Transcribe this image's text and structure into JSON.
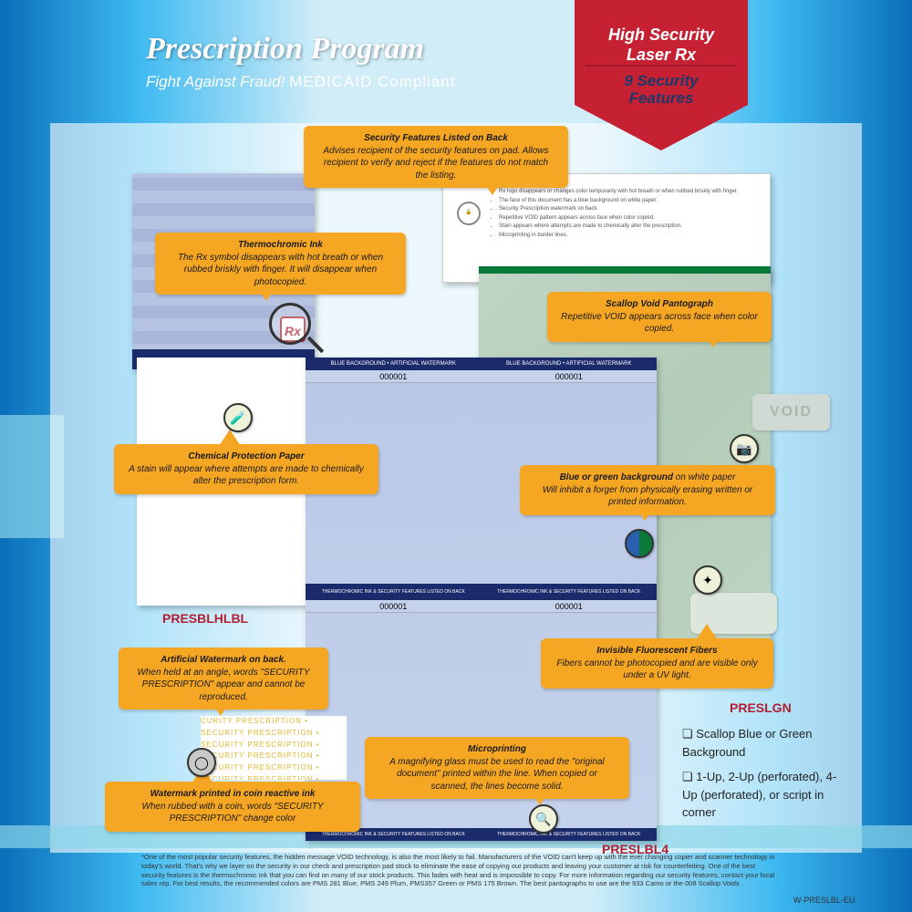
{
  "colors": {
    "accent_orange": "#f5a623",
    "ribbon_red": "#c62033",
    "deep_navy": "#1b2a6b",
    "product_red": "#b02030"
  },
  "header": {
    "title": "Prescription Program",
    "subtitle_em": "Fight Against Fraud!",
    "subtitle_plain": "MEDICAID Compliant"
  },
  "ribbon": {
    "line1": "High Security\nLaser Rx",
    "line2": "9 Security\nFeatures"
  },
  "callouts": {
    "sec_back": {
      "title": "Security Features Listed on Back",
      "body": "Advises recipient of the security features on pad. Allows recipient to verify and reject if the features do not match the listing."
    },
    "thermo": {
      "title": "Thermochromic Ink",
      "body": "The Rx symbol disappears with hot breath or when rubbed briskly with finger. It will disappear when photocopied."
    },
    "scallop": {
      "title": "Scallop Void Pantograph",
      "body": "Repetitive VOID appears across face when color copied."
    },
    "chem": {
      "title": "Chemical Protection Paper",
      "body": "A stain will appear where attempts are made to chemically alter the prescription form."
    },
    "bluebg": {
      "title": "Blue or green background",
      "title_tail": " on white paper",
      "body": "Will inhibit a forger from physically erasing written or printed information."
    },
    "fibers": {
      "title": "Invisible Fluorescent Fibers",
      "body": "Fibers cannot be photocopied and are visible only under a UV light."
    },
    "artwm": {
      "title": "Artificial Watermark on back.",
      "body": "When held at an angle, words \"SECURITY PRESCRIPTION\" appear and cannot be reproduced."
    },
    "coin": {
      "title": "Watermark printed in coin reactive ink",
      "body": "When rubbed with a coin, words \"SECURITY PRESCRIPTION\" change color"
    },
    "micro": {
      "title": "Microprinting",
      "body": "A magnifying glass must be used to read the \"original document\" printed within the line. When copied or scanned, the lines become solid."
    }
  },
  "doc_back_bullets": [
    "Rx logo disappears or changes color temporarily with hot breath or when rubbed briskly with finger.",
    "The face of this document has a blue background on white paper.",
    "Security Prescription watermark on back.",
    "Repetitive VOID pattern appears across face when color copied.",
    "Stain appears where attempts are made to chemically alter the prescription.",
    "Microprinting in border lines."
  ],
  "main_doc": {
    "header_left": "BLUE BACKGROUND • ARTIFICIAL WATERMARK",
    "header_right": "BLUE BACKGROUND • ARTIFICIAL WATERMARK",
    "number": "000001",
    "midbar": "THERMOCHROMIC INK & SECURITY FEATURES LISTED ON BACK"
  },
  "products": {
    "p1": "PRESBLHLBL",
    "p2": "PRESLGN",
    "p3": "PRESLBL4"
  },
  "options": {
    "opt1": "Scallop Blue or Green Background",
    "opt2": "1-Up, 2-Up (perforated), 4-Up (perforated), or script in corner"
  },
  "void_sample": "VOID",
  "yellow_wm_text": "CURITY PRESCRIPTION • SECURITY PRESCRIPTION • SECURITY PRESCRIPTION • SECURITY PRESCRIPTION • SECURITY PRESCRIPTION • SECURITY PRESCRIPTION •",
  "rx": "Rx",
  "footnote": "*One of the most popular security features, the hidden message VOID technology, is also the most likely to fail. Manufacturers of the VOID can't keep up with the ever changing copier and scanner technology in today's world. That's why we layer on the security in our check and prescription pad stock to eliminate the ease of copying our products and leaving your customer at risk for counterfeiting. One of the best security features is the thermochromic ink that you can find on many of our stock products. This fades with heat and is impossible to copy. For more information regarding our security features, contact your local sales rep. For best results, the recommended colors are PMS 281 Blue, PMS 249 Plum, PMS357 Green or PMS 175 Brown. The best pantographs to use are the 933 Camo or the 008 Scallop Voids",
  "doc_code": "W-PRESLBL-EU"
}
